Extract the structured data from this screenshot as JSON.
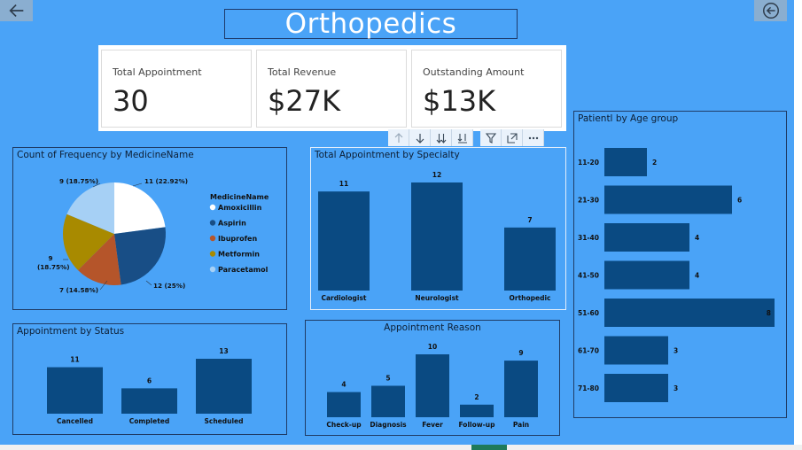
{
  "title": "Orthopedics",
  "kpis": [
    {
      "label": "Total Appointment",
      "value": "30"
    },
    {
      "label": "Total Revenue",
      "value": "$27K"
    },
    {
      "label": "Outstanding Amount",
      "value": "$13K"
    }
  ],
  "colors": {
    "background": "#4aa3f7",
    "bar": "#0a4a82",
    "amoxicillin": "#ffffff",
    "aspirin": "#184e86",
    "ibuprofen": "#b5552a",
    "metformin": "#a88a00",
    "paracetamol": "#a6d0f5"
  },
  "icons": [
    "back-arrow-icon",
    "back-circle-icon",
    "arrow-up-icon",
    "arrow-down-icon",
    "double-arrow-down-icon",
    "expand-hierarchy-icon",
    "filter-icon",
    "focus-mode-icon",
    "more-options-icon"
  ],
  "charts": {
    "medicine": {
      "title": "Count of Frequency by MedicineName",
      "legend_title": "MedicineName",
      "chart_data": {
        "type": "pie",
        "labels": [
          "Amoxicillin",
          "Aspirin",
          "Ibuprofen",
          "Metformin",
          "Paracetamol"
        ],
        "values": [
          11,
          12,
          7,
          9,
          9
        ],
        "data_labels": [
          "11 (22.92%)",
          "12 (25%)",
          "7 (14.58%)",
          "9 (18.75%)",
          "9 (18.75%)"
        ],
        "legend": "right"
      }
    },
    "specialty": {
      "title": "Total Appointment by Specialty",
      "chart_data": {
        "type": "bar",
        "categories": [
          "Cardiologist",
          "Neurologist",
          "Orthopedic"
        ],
        "values": [
          11,
          12,
          7
        ]
      }
    },
    "age": {
      "title": "Patientl by Age group",
      "chart_data": {
        "type": "bar",
        "orientation": "horizontal",
        "categories": [
          "11-20",
          "21-30",
          "31-40",
          "41-50",
          "51-60",
          "61-70",
          "71-80"
        ],
        "values": [
          2,
          6,
          4,
          4,
          8,
          3,
          3
        ]
      }
    },
    "status": {
      "title": "Appointment by Status",
      "chart_data": {
        "type": "bar",
        "categories": [
          "Cancelled",
          "Completed",
          "Scheduled"
        ],
        "values": [
          11,
          6,
          13
        ]
      }
    },
    "reason": {
      "title": "Appointment Reason",
      "chart_data": {
        "type": "bar",
        "categories": [
          "Check-up",
          "Diagnosis",
          "Fever",
          "Follow-up",
          "Pain"
        ],
        "values": [
          4,
          5,
          10,
          2,
          9
        ]
      }
    }
  }
}
